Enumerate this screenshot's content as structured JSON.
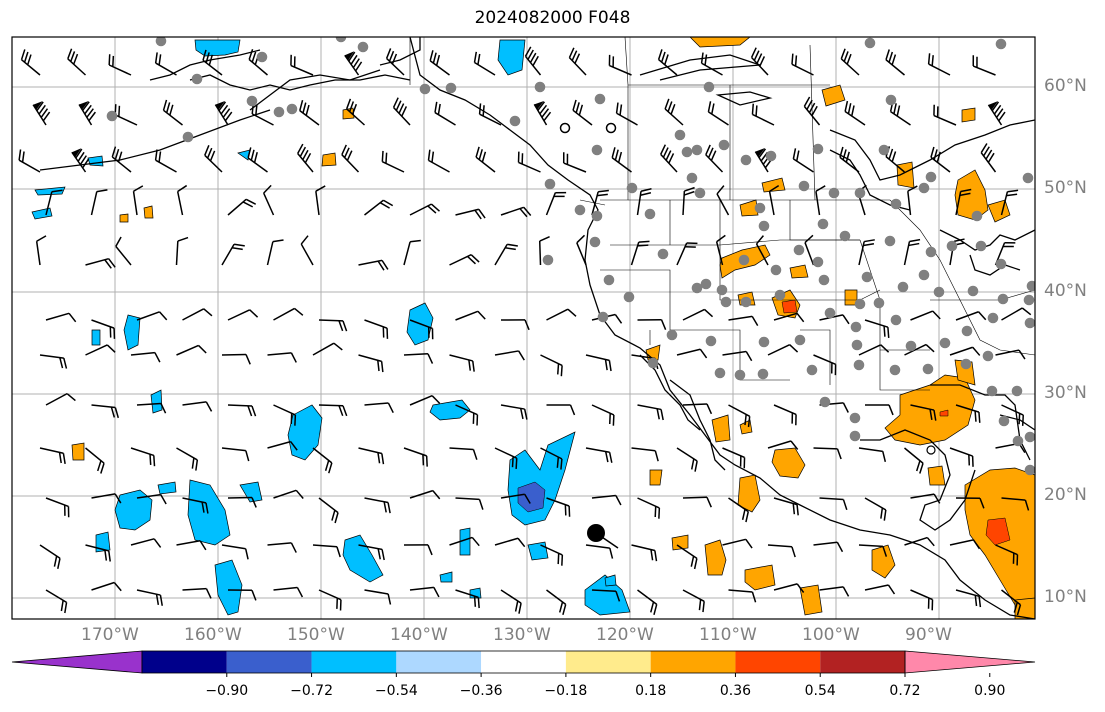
{
  "title": "2024082000 F048",
  "lon_ticks": [
    "170°W",
    "160°W",
    "150°W",
    "140°W",
    "130°W",
    "120°W",
    "110°W",
    "100°W",
    "90°W"
  ],
  "lat_ticks": [
    "60°N",
    "50°N",
    "40°N",
    "30°N",
    "20°N",
    "10°N"
  ],
  "colorbar": {
    "ticks": [
      "−0.90",
      "−0.72",
      "−0.54",
      "−0.36",
      "−0.18",
      "0.18",
      "0.36",
      "0.54",
      "0.72",
      "0.90"
    ],
    "colors": [
      "#9932cc",
      "#00008b",
      "#3a5fcd",
      "#00bfff",
      "#add8ff",
      "#ffffff",
      "#ffeb8c",
      "#ffa500",
      "#ff4500",
      "#b22222",
      "#ff88aa"
    ]
  },
  "map_colors": {
    "coast": "#000000",
    "grid": "#b0b0b0",
    "station": "#808080",
    "negative": "#00bfff",
    "negative_strong": "#3a5fcd",
    "positive": "#ffa500",
    "positive_strong": "#ff4500"
  }
}
